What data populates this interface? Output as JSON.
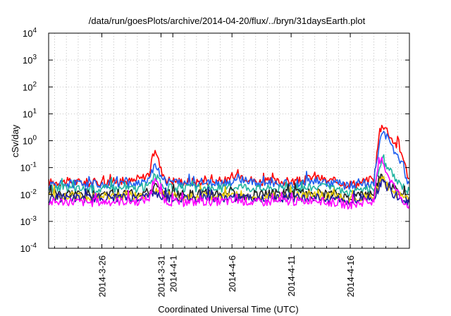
{
  "chart_data": {
    "type": "line",
    "title": "/data/run/goesPlots/archive/2014-04-20/flux/../bryn/31daysEarth.plot",
    "xlabel": "Coordinated Universal Time (UTC)",
    "ylabel": "cSv/day",
    "yscale": "log",
    "ylim": [
      0.0001,
      10000
    ],
    "xlim": [
      "2014-03-21T12:00",
      "2014-04-21T00:00"
    ],
    "grid": true,
    "legend": "none",
    "y_ticks": [
      {
        "base": "10",
        "exp": "-4"
      },
      {
        "base": "10",
        "exp": "-3"
      },
      {
        "base": "10",
        "exp": "-2"
      },
      {
        "base": "10",
        "exp": "-1"
      },
      {
        "base": "10",
        "exp": "0"
      },
      {
        "base": "10",
        "exp": "1"
      },
      {
        "base": "10",
        "exp": "2"
      },
      {
        "base": "10",
        "exp": "3"
      },
      {
        "base": "10",
        "exp": "4"
      }
    ],
    "x_ticks": [
      {
        "date": "2014-03-26",
        "label": "2014-3-26"
      },
      {
        "date": "2014-03-31",
        "label": "2014-3-31"
      },
      {
        "date": "2014-04-01",
        "label": "2014-4-1"
      },
      {
        "date": "2014-04-06",
        "label": "2014-4-6"
      },
      {
        "date": "2014-04-11",
        "label": "2014-4-11"
      },
      {
        "date": "2014-04-16",
        "label": "2014-4-16"
      }
    ],
    "minor_grid_dates": [
      "2014-03-22",
      "2014-03-23",
      "2014-03-24",
      "2014-03-25",
      "2014-03-27",
      "2014-03-28",
      "2014-03-29",
      "2014-03-30",
      "2014-04-02",
      "2014-04-03",
      "2014-04-04",
      "2014-04-05",
      "2014-04-07",
      "2014-04-08",
      "2014-04-09",
      "2014-04-10",
      "2014-04-12",
      "2014-04-13",
      "2014-04-14",
      "2014-04-15",
      "2014-04-17",
      "2014-04-18",
      "2014-04-19",
      "2014-04-20"
    ],
    "series": [
      {
        "color": "#ff0000",
        "values": [
          [
            "2014-03-21T12:00",
            0.028
          ],
          [
            "2014-03-23T00:00",
            0.03
          ],
          [
            "2014-03-25T00:00",
            0.028
          ],
          [
            "2014-03-27T00:00",
            0.03
          ],
          [
            "2014-03-29T00:00",
            0.032
          ],
          [
            "2014-03-30T00:00",
            0.06
          ],
          [
            "2014-03-30T12:00",
            0.55
          ],
          [
            "2014-03-31T00:00",
            0.08
          ],
          [
            "2014-03-31T12:00",
            0.035
          ],
          [
            "2014-04-02T00:00",
            0.03
          ],
          [
            "2014-04-04T00:00",
            0.03
          ],
          [
            "2014-04-06T00:00",
            0.035
          ],
          [
            "2014-04-06T12:00",
            0.06
          ],
          [
            "2014-04-08T00:00",
            0.03
          ],
          [
            "2014-04-10T00:00",
            0.03
          ],
          [
            "2014-04-12T00:00",
            0.032
          ],
          [
            "2014-04-13T00:00",
            0.05
          ],
          [
            "2014-04-14T00:00",
            0.032
          ],
          [
            "2014-04-15T00:00",
            0.03
          ],
          [
            "2014-04-15T12:00",
            0.025
          ],
          [
            "2014-04-16T12:00",
            0.025
          ],
          [
            "2014-04-17T00:00",
            0.03
          ],
          [
            "2014-04-18T00:00",
            0.035
          ],
          [
            "2014-04-18T06:00",
            0.3
          ],
          [
            "2014-04-18T12:00",
            2.5
          ],
          [
            "2014-04-18T18:00",
            4.0
          ],
          [
            "2014-04-19T00:00",
            3.0
          ],
          [
            "2014-04-19T12:00",
            1.2
          ],
          [
            "2014-04-20T00:00",
            0.6
          ],
          [
            "2014-04-20T12:00",
            0.25
          ],
          [
            "2014-04-20T18:00",
            0.07
          ],
          [
            "2014-04-21T00:00",
            0.04
          ]
        ]
      },
      {
        "color": "#1e5ff0",
        "values": [
          [
            "2014-03-21T12:00",
            0.022
          ],
          [
            "2014-03-23T00:00",
            0.025
          ],
          [
            "2014-03-25T00:00",
            0.024
          ],
          [
            "2014-03-27T00:00",
            0.025
          ],
          [
            "2014-03-29T00:00",
            0.026
          ],
          [
            "2014-03-30T00:00",
            0.04
          ],
          [
            "2014-03-30T12:00",
            0.15
          ],
          [
            "2014-03-31T00:00",
            0.05
          ],
          [
            "2014-03-31T12:00",
            0.03
          ],
          [
            "2014-04-02T00:00",
            0.025
          ],
          [
            "2014-04-04T00:00",
            0.025
          ],
          [
            "2014-04-06T00:00",
            0.028
          ],
          [
            "2014-04-06T12:00",
            0.04
          ],
          [
            "2014-04-08T00:00",
            0.025
          ],
          [
            "2014-04-10T00:00",
            0.025
          ],
          [
            "2014-04-12T00:00",
            0.026
          ],
          [
            "2014-04-13T00:00",
            0.035
          ],
          [
            "2014-04-14T00:00",
            0.026
          ],
          [
            "2014-04-15T00:00",
            0.025
          ],
          [
            "2014-04-15T12:00",
            0.022
          ],
          [
            "2014-04-16T12:00",
            0.022
          ],
          [
            "2014-04-17T00:00",
            0.025
          ],
          [
            "2014-04-18T00:00",
            0.028
          ],
          [
            "2014-04-18T06:00",
            0.15
          ],
          [
            "2014-04-18T12:00",
            1.0
          ],
          [
            "2014-04-18T18:00",
            2.0
          ],
          [
            "2014-04-19T00:00",
            1.5
          ],
          [
            "2014-04-19T12:00",
            0.6
          ],
          [
            "2014-04-20T00:00",
            0.3
          ],
          [
            "2014-04-20T12:00",
            0.12
          ],
          [
            "2014-04-20T18:00",
            0.04
          ],
          [
            "2014-04-21T00:00",
            0.025
          ]
        ]
      },
      {
        "color": "#20b4a0",
        "values": [
          [
            "2014-03-21T12:00",
            0.016
          ],
          [
            "2014-03-23T00:00",
            0.017
          ],
          [
            "2014-03-25T00:00",
            0.016
          ],
          [
            "2014-03-27T00:00",
            0.017
          ],
          [
            "2014-03-29T00:00",
            0.017
          ],
          [
            "2014-03-30T00:00",
            0.022
          ],
          [
            "2014-03-30T12:00",
            0.05
          ],
          [
            "2014-03-31T00:00",
            0.025
          ],
          [
            "2014-03-31T12:00",
            0.018
          ],
          [
            "2014-04-02T00:00",
            0.017
          ],
          [
            "2014-04-04T00:00",
            0.017
          ],
          [
            "2014-04-06T00:00",
            0.018
          ],
          [
            "2014-04-06T12:00",
            0.022
          ],
          [
            "2014-04-08T00:00",
            0.017
          ],
          [
            "2014-04-10T00:00",
            0.017
          ],
          [
            "2014-04-12T00:00",
            0.017
          ],
          [
            "2014-04-13T00:00",
            0.02
          ],
          [
            "2014-04-14T00:00",
            0.017
          ],
          [
            "2014-04-15T00:00",
            0.016
          ],
          [
            "2014-04-15T12:00",
            0.012
          ],
          [
            "2014-04-16T12:00",
            0.012
          ],
          [
            "2014-04-17T00:00",
            0.016
          ],
          [
            "2014-04-18T00:00",
            0.017
          ],
          [
            "2014-04-18T06:00",
            0.04
          ],
          [
            "2014-04-18T12:00",
            0.12
          ],
          [
            "2014-04-18T18:00",
            0.2
          ],
          [
            "2014-04-19T00:00",
            0.12
          ],
          [
            "2014-04-19T12:00",
            0.06
          ],
          [
            "2014-04-20T00:00",
            0.03
          ],
          [
            "2014-04-20T12:00",
            0.02
          ],
          [
            "2014-04-20T18:00",
            0.015
          ],
          [
            "2014-04-21T00:00",
            0.014
          ]
        ]
      },
      {
        "color": "#222222",
        "values": [
          [
            "2014-03-21T12:00",
            0.01
          ],
          [
            "2014-03-23T00:00",
            0.011
          ],
          [
            "2014-03-25T00:00",
            0.01
          ],
          [
            "2014-03-27T00:00",
            0.011
          ],
          [
            "2014-03-29T00:00",
            0.011
          ],
          [
            "2014-03-30T00:00",
            0.012
          ],
          [
            "2014-03-30T12:00",
            0.02
          ],
          [
            "2014-03-31T00:00",
            0.013
          ],
          [
            "2014-03-31T12:00",
            0.011
          ],
          [
            "2014-04-02T00:00",
            0.01
          ],
          [
            "2014-04-04T00:00",
            0.011
          ],
          [
            "2014-04-06T00:00",
            0.011
          ],
          [
            "2014-04-06T12:00",
            0.008
          ],
          [
            "2014-04-08T00:00",
            0.01
          ],
          [
            "2014-04-10T00:00",
            0.011
          ],
          [
            "2014-04-12T00:00",
            0.011
          ],
          [
            "2014-04-13T00:00",
            0.012
          ],
          [
            "2014-04-14T00:00",
            0.01
          ],
          [
            "2014-04-15T00:00",
            0.01
          ],
          [
            "2014-04-15T12:00",
            0.008
          ],
          [
            "2014-04-16T12:00",
            0.008
          ],
          [
            "2014-04-17T00:00",
            0.01
          ],
          [
            "2014-04-18T00:00",
            0.011
          ],
          [
            "2014-04-18T06:00",
            0.02
          ],
          [
            "2014-04-18T12:00",
            0.04
          ],
          [
            "2014-04-18T18:00",
            0.05
          ],
          [
            "2014-04-19T00:00",
            0.03
          ],
          [
            "2014-04-19T12:00",
            0.02
          ],
          [
            "2014-04-20T00:00",
            0.012
          ],
          [
            "2014-04-20T12:00",
            0.01
          ],
          [
            "2014-04-20T18:00",
            0.008
          ],
          [
            "2014-04-21T00:00",
            0.008
          ]
        ]
      },
      {
        "color": "#e6c800",
        "values": [
          [
            "2014-03-21T12:00",
            0.008
          ],
          [
            "2014-03-23T00:00",
            0.009
          ],
          [
            "2014-03-25T00:00",
            0.008
          ],
          [
            "2014-03-27T00:00",
            0.009
          ],
          [
            "2014-03-29T00:00",
            0.009
          ],
          [
            "2014-03-30T00:00",
            0.01
          ],
          [
            "2014-03-30T12:00",
            0.015
          ],
          [
            "2014-03-31T00:00",
            0.01
          ],
          [
            "2014-03-31T12:00",
            0.009
          ],
          [
            "2014-04-02T00:00",
            0.008
          ],
          [
            "2014-04-04T00:00",
            0.009
          ],
          [
            "2014-04-06T00:00",
            0.009
          ],
          [
            "2014-04-06T12:00",
            0.01
          ],
          [
            "2014-04-08T00:00",
            0.008
          ],
          [
            "2014-04-10T00:00",
            0.009
          ],
          [
            "2014-04-12T00:00",
            0.009
          ],
          [
            "2014-04-13T00:00",
            0.01
          ],
          [
            "2014-04-14T00:00",
            0.008
          ],
          [
            "2014-04-15T00:00",
            0.008
          ],
          [
            "2014-04-15T12:00",
            0.0065
          ],
          [
            "2014-04-16T12:00",
            0.0065
          ],
          [
            "2014-04-17T00:00",
            0.008
          ],
          [
            "2014-04-18T00:00",
            0.009
          ],
          [
            "2014-04-18T06:00",
            0.015
          ],
          [
            "2014-04-18T12:00",
            0.03
          ],
          [
            "2014-04-18T18:00",
            0.04
          ],
          [
            "2014-04-19T00:00",
            0.025
          ],
          [
            "2014-04-19T12:00",
            0.015
          ],
          [
            "2014-04-20T00:00",
            0.01
          ],
          [
            "2014-04-20T12:00",
            0.008
          ],
          [
            "2014-04-20T18:00",
            0.0065
          ],
          [
            "2014-04-21T00:00",
            0.006
          ]
        ]
      },
      {
        "color": "#1a1aa0",
        "values": [
          [
            "2014-03-21T12:00",
            0.007
          ],
          [
            "2014-03-23T00:00",
            0.0075
          ],
          [
            "2014-03-25T00:00",
            0.007
          ],
          [
            "2014-03-27T00:00",
            0.0075
          ],
          [
            "2014-03-29T00:00",
            0.0075
          ],
          [
            "2014-03-30T00:00",
            0.008
          ],
          [
            "2014-03-30T12:00",
            0.012
          ],
          [
            "2014-03-31T00:00",
            0.008
          ],
          [
            "2014-03-31T12:00",
            0.0075
          ],
          [
            "2014-04-02T00:00",
            0.007
          ],
          [
            "2014-04-04T00:00",
            0.0075
          ],
          [
            "2014-04-06T00:00",
            0.0075
          ],
          [
            "2014-04-06T12:00",
            0.008
          ],
          [
            "2014-04-08T00:00",
            0.007
          ],
          [
            "2014-04-10T00:00",
            0.0075
          ],
          [
            "2014-04-12T00:00",
            0.0075
          ],
          [
            "2014-04-13T00:00",
            0.008
          ],
          [
            "2014-04-14T00:00",
            0.007
          ],
          [
            "2014-04-15T00:00",
            0.007
          ],
          [
            "2014-04-15T12:00",
            0.0055
          ],
          [
            "2014-04-16T12:00",
            0.0055
          ],
          [
            "2014-04-17T00:00",
            0.007
          ],
          [
            "2014-04-18T00:00",
            0.0075
          ],
          [
            "2014-04-18T06:00",
            0.012
          ],
          [
            "2014-04-18T12:00",
            0.025
          ],
          [
            "2014-04-18T18:00",
            0.03
          ],
          [
            "2014-04-19T00:00",
            0.02
          ],
          [
            "2014-04-19T12:00",
            0.012
          ],
          [
            "2014-04-20T00:00",
            0.008
          ],
          [
            "2014-04-20T12:00",
            0.007
          ],
          [
            "2014-04-20T18:00",
            0.0055
          ],
          [
            "2014-04-21T00:00",
            0.005
          ]
        ]
      },
      {
        "color": "#ff00ff",
        "values": [
          [
            "2014-03-21T12:00",
            0.005
          ],
          [
            "2014-03-23T00:00",
            0.0055
          ],
          [
            "2014-03-25T00:00",
            0.005
          ],
          [
            "2014-03-27T00:00",
            0.0055
          ],
          [
            "2014-03-29T00:00",
            0.0055
          ],
          [
            "2014-03-30T00:00",
            0.007
          ],
          [
            "2014-03-30T12:00",
            0.04
          ],
          [
            "2014-03-31T00:00",
            0.01
          ],
          [
            "2014-03-31T12:00",
            0.0055
          ],
          [
            "2014-04-02T00:00",
            0.005
          ],
          [
            "2014-04-04T00:00",
            0.0055
          ],
          [
            "2014-04-06T00:00",
            0.0055
          ],
          [
            "2014-04-06T12:00",
            0.006
          ],
          [
            "2014-04-08T00:00",
            0.005
          ],
          [
            "2014-04-10T00:00",
            0.0055
          ],
          [
            "2014-04-12T00:00",
            0.0055
          ],
          [
            "2014-04-13T00:00",
            0.007
          ],
          [
            "2014-04-14T00:00",
            0.005
          ],
          [
            "2014-04-15T00:00",
            0.005
          ],
          [
            "2014-04-15T12:00",
            0.0042
          ],
          [
            "2014-04-16T12:00",
            0.0042
          ],
          [
            "2014-04-17T00:00",
            0.005
          ],
          [
            "2014-04-18T00:00",
            0.0055
          ],
          [
            "2014-04-18T06:00",
            0.04
          ],
          [
            "2014-04-18T12:00",
            0.15
          ],
          [
            "2014-04-18T18:00",
            0.2
          ],
          [
            "2014-04-19T00:00",
            0.08
          ],
          [
            "2014-04-19T12:00",
            0.03
          ],
          [
            "2014-04-20T00:00",
            0.012
          ],
          [
            "2014-04-20T12:00",
            0.006
          ],
          [
            "2014-04-20T18:00",
            0.0045
          ],
          [
            "2014-04-21T00:00",
            0.004
          ]
        ]
      }
    ]
  }
}
